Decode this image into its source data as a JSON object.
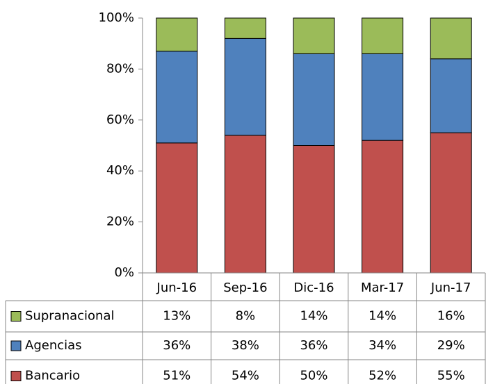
{
  "chart_data": {
    "type": "stacked_bar",
    "categories": [
      "Jun-16",
      "Sep-16",
      "Dic-16",
      "Mar-17",
      "Jun-17"
    ],
    "series": [
      {
        "name": "Bancario",
        "color": "#c0504d",
        "values": [
          51,
          54,
          50,
          52,
          55
        ],
        "value_labels": [
          "51%",
          "54%",
          "50%",
          "52%",
          "55%"
        ]
      },
      {
        "name": "Agencias",
        "color": "#4f81bd",
        "values": [
          36,
          38,
          36,
          34,
          29
        ],
        "value_labels": [
          "36%",
          "38%",
          "36%",
          "34%",
          "29%"
        ]
      },
      {
        "name": "Supranacional",
        "color": "#9bbb59",
        "values": [
          13,
          8,
          14,
          14,
          16
        ],
        "value_labels": [
          "13%",
          "8%",
          "14%",
          "14%",
          "16%"
        ]
      }
    ],
    "ylim": [
      0,
      100
    ],
    "yticks": [
      {
        "value": 0,
        "label": "0%"
      },
      {
        "value": 20,
        "label": "20%"
      },
      {
        "value": 40,
        "label": "40%"
      },
      {
        "value": 60,
        "label": "60%"
      },
      {
        "value": 80,
        "label": "80%"
      },
      {
        "value": 100,
        "label": "100%"
      }
    ],
    "grid": false
  }
}
